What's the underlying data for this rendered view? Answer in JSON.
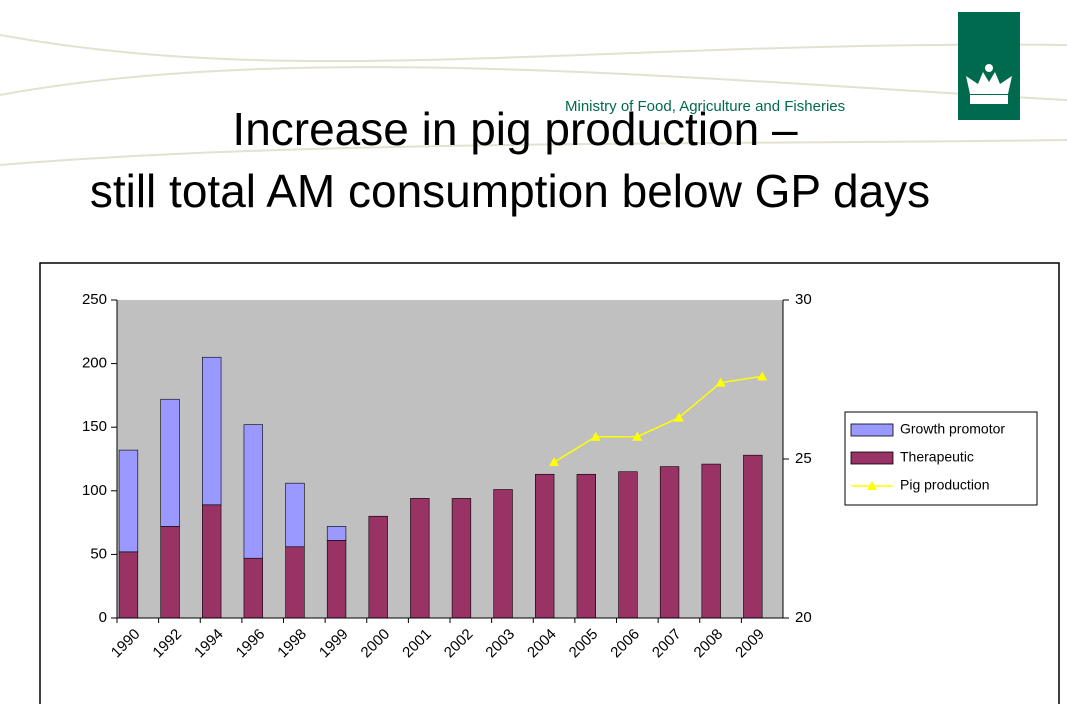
{
  "header": {
    "ministry": "Ministry of Food, Agriculture and Fisheries",
    "title": [
      "Increase in pig production –",
      "still total AM consumption below GP days"
    ]
  },
  "chart_data": {
    "type": "bar",
    "categories": [
      "1990",
      "1992",
      "1994",
      "1996",
      "1998",
      "1999",
      "2000",
      "2001",
      "2002",
      "2003",
      "2004",
      "2005",
      "2006",
      "2007",
      "2008",
      "2009"
    ],
    "series": [
      {
        "name": "Therapeutic",
        "color": "#993366",
        "values": [
          52,
          72,
          89,
          47,
          56,
          61,
          80,
          94,
          94,
          101,
          113,
          113,
          115,
          119,
          121,
          128
        ]
      },
      {
        "name": "Growth promotor",
        "color": "#9999ff",
        "values": [
          80,
          100,
          116,
          105,
          50,
          11,
          null,
          null,
          null,
          null,
          null,
          null,
          null,
          null,
          null,
          null
        ]
      },
      {
        "name": "Pig production",
        "color": "#ffff00",
        "type": "line",
        "axis": "y2",
        "values": [
          null,
          null,
          null,
          null,
          null,
          null,
          null,
          null,
          null,
          null,
          24.9,
          25.7,
          25.7,
          26.3,
          27.4,
          27.6
        ]
      }
    ],
    "legend_order": [
      1,
      0,
      2
    ],
    "ylim": [
      0,
      250
    ],
    "yticks": [
      0,
      50,
      100,
      150,
      200,
      250
    ],
    "y2lim": [
      20,
      30
    ],
    "y2ticks": [
      20,
      25,
      30
    ],
    "legend": "right"
  }
}
